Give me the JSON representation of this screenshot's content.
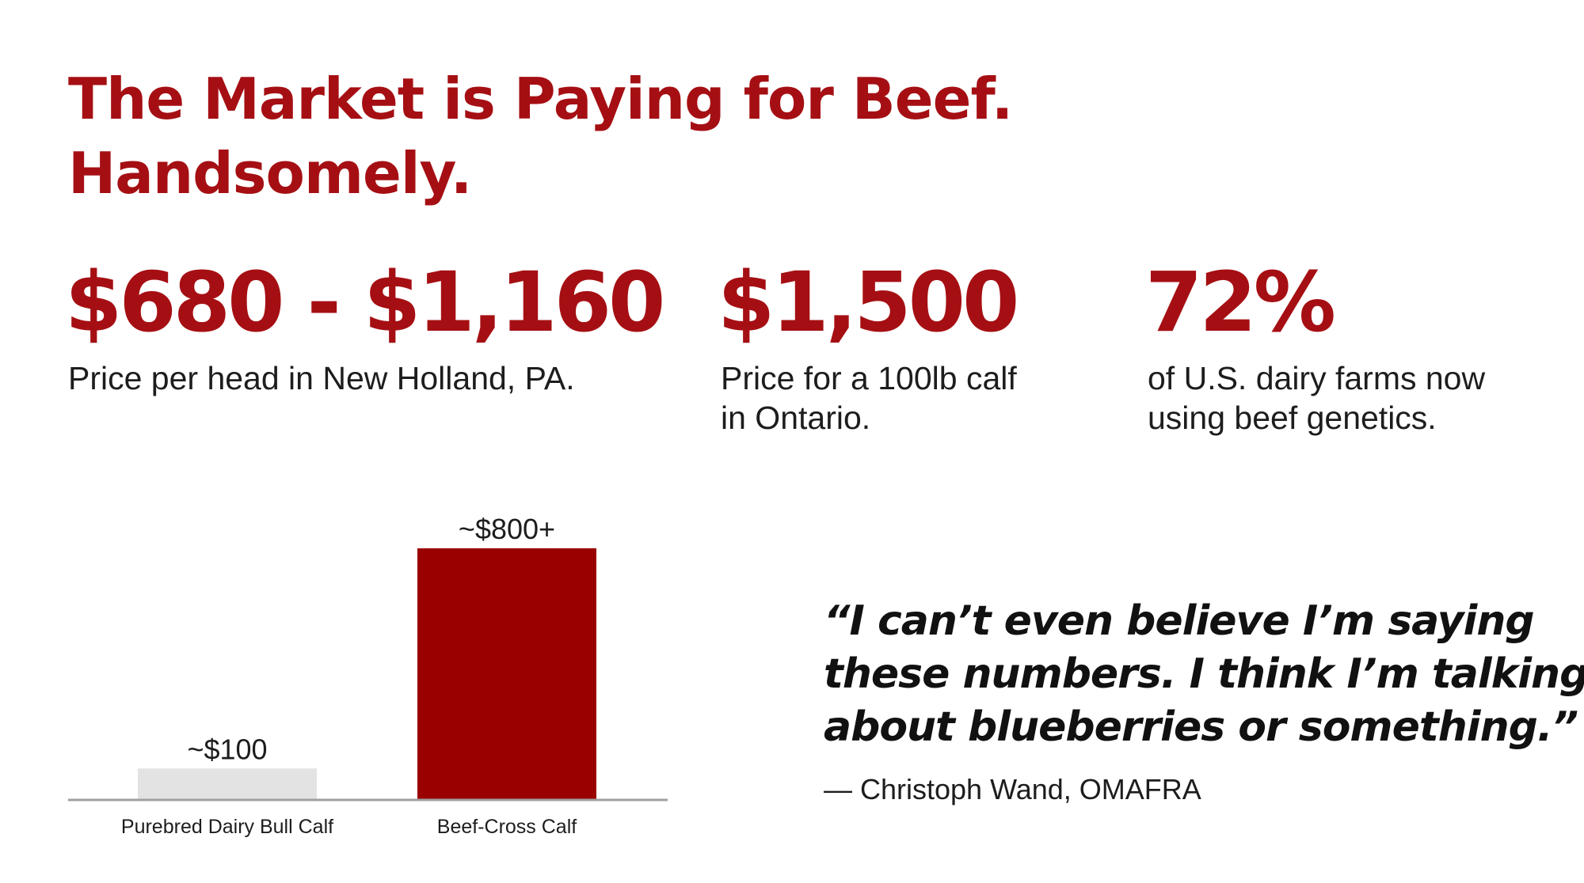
{
  "headline": {
    "line1": "The Market is Paying for Beef.",
    "line2": "Handsomely."
  },
  "stats": [
    {
      "value": "$680 - $1,160",
      "desc_lines": [
        "Price per head in New Holland, PA."
      ]
    },
    {
      "value": "$1,500",
      "desc_lines": [
        "Price for a 100lb calf",
        "in Ontario."
      ]
    },
    {
      "value": "72%",
      "desc_lines": [
        "of U.S. dairy farms now",
        "using beef genetics."
      ]
    }
  ],
  "chart_data": {
    "type": "bar",
    "categories": [
      "Purebred Dairy Bull Calf",
      "Beef-Cross Calf"
    ],
    "values": [
      100,
      800
    ],
    "data_labels": [
      "~$100",
      "~$800+"
    ],
    "colors": [
      "#e3e3e3",
      "#9b0000"
    ],
    "title": "",
    "xlabel": "",
    "ylabel": "",
    "ylim": [
      0,
      800
    ],
    "grid": false
  },
  "quote": {
    "lines": [
      "“I can’t even believe I’m saying",
      "these numbers. I think I’m talking",
      "about blueberries or something.”"
    ],
    "attribution": "— Christoph Wand, OMAFRA"
  },
  "colors": {
    "accent": "#a50f13",
    "bar_dairy": "#e3e3e3",
    "bar_beef": "#9b0000",
    "axis": "#a0a0a0",
    "text": "#1d1d1d"
  }
}
